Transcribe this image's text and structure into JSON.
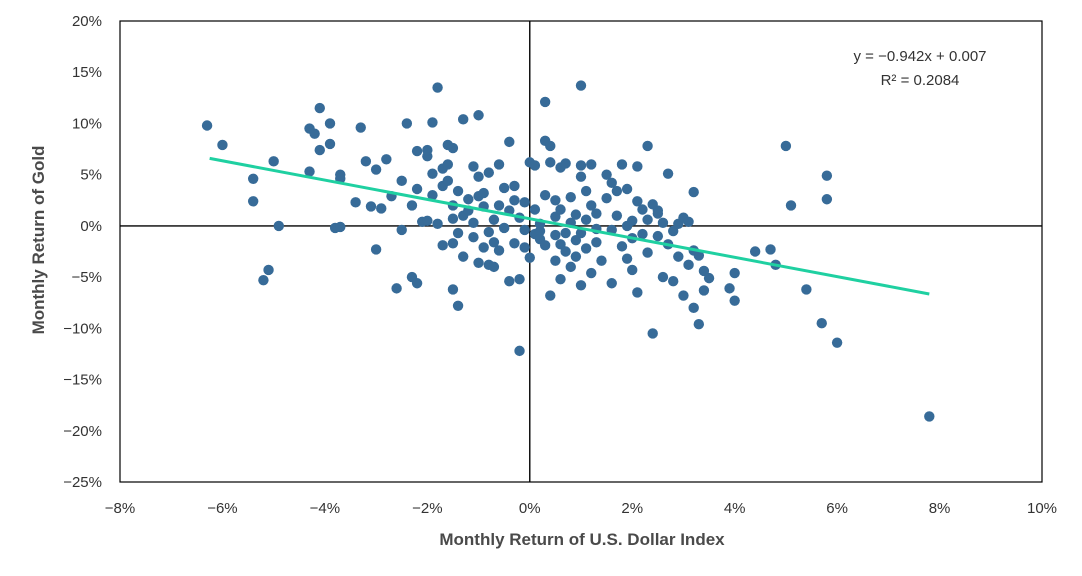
{
  "chart_data": {
    "type": "scatter",
    "title": "",
    "xlabel": "Monthly Return of U.S. Dollar Index",
    "ylabel": "Monthly Return of Gold",
    "xlim": [
      -8,
      10
    ],
    "ylim": [
      -25,
      20
    ],
    "x_ticks": [
      -8,
      -6,
      -4,
      -2,
      0,
      2,
      4,
      6,
      8,
      10
    ],
    "y_ticks": [
      -25,
      -20,
      -15,
      -10,
      -5,
      0,
      5,
      10,
      15,
      20
    ],
    "x_tick_labels": [
      "−8%",
      "−6%",
      "−4%",
      "−2%",
      "0%",
      "2%",
      "4%",
      "6%",
      "8%",
      "10%"
    ],
    "y_tick_labels": [
      "−25%",
      "−20%",
      "−15%",
      "−10%",
      "−5%",
      "0%",
      "5%",
      "10%",
      "15%",
      "20%"
    ],
    "grid": false,
    "colors": {
      "points": "#376b98",
      "trendline": "#1fd0a1",
      "axes": "#000000"
    },
    "trendline": {
      "slope": -0.942,
      "intercept": 0.7,
      "x_range": [
        -6.25,
        7.8
      ]
    },
    "annotation": {
      "equation": "y = −0.942x + 0.007",
      "r_squared": "R² = 0.2084"
    },
    "points": [
      [
        -6.3,
        9.8
      ],
      [
        -6.0,
        7.9
      ],
      [
        -5.4,
        4.6
      ],
      [
        -5.4,
        2.4
      ],
      [
        -5.2,
        -5.3
      ],
      [
        -5.1,
        -4.3
      ],
      [
        -5.0,
        6.3
      ],
      [
        -4.9,
        0.0
      ],
      [
        -4.3,
        5.3
      ],
      [
        -4.3,
        9.5
      ],
      [
        -4.2,
        9.0
      ],
      [
        -4.1,
        11.5
      ],
      [
        -4.1,
        7.4
      ],
      [
        -3.9,
        8.0
      ],
      [
        -3.9,
        10.0
      ],
      [
        -3.8,
        -0.2
      ],
      [
        -3.7,
        -0.1
      ],
      [
        -3.7,
        4.6
      ],
      [
        -3.7,
        5.0
      ],
      [
        -3.4,
        2.3
      ],
      [
        -3.3,
        9.6
      ],
      [
        -3.2,
        6.3
      ],
      [
        -3.1,
        1.9
      ],
      [
        -3.0,
        -2.3
      ],
      [
        -3.0,
        5.5
      ],
      [
        -2.9,
        1.7
      ],
      [
        -2.8,
        6.5
      ],
      [
        -2.7,
        2.9
      ],
      [
        -2.6,
        -6.1
      ],
      [
        -2.5,
        4.4
      ],
      [
        -2.5,
        -0.4
      ],
      [
        -2.4,
        10.0
      ],
      [
        -2.3,
        -5.0
      ],
      [
        -2.3,
        2.0
      ],
      [
        -2.2,
        -5.6
      ],
      [
        -2.2,
        3.6
      ],
      [
        -2.2,
        7.3
      ],
      [
        -2.1,
        0.4
      ],
      [
        -2.0,
        6.8
      ],
      [
        -2.0,
        0.5
      ],
      [
        -2.0,
        7.4
      ],
      [
        -1.9,
        10.1
      ],
      [
        -1.9,
        5.1
      ],
      [
        -1.9,
        3.0
      ],
      [
        -1.8,
        0.2
      ],
      [
        -1.8,
        13.5
      ],
      [
        -1.7,
        5.6
      ],
      [
        -1.7,
        -1.9
      ],
      [
        -1.7,
        3.9
      ],
      [
        -1.6,
        6.0
      ],
      [
        -1.6,
        4.4
      ],
      [
        -1.6,
        7.9
      ],
      [
        -1.5,
        0.7
      ],
      [
        -1.5,
        2.0
      ],
      [
        -1.5,
        -6.2
      ],
      [
        -1.5,
        -1.7
      ],
      [
        -1.5,
        7.6
      ],
      [
        -1.4,
        -0.7
      ],
      [
        -1.4,
        3.4
      ],
      [
        -1.4,
        -7.8
      ],
      [
        -1.3,
        10.4
      ],
      [
        -1.3,
        1.0
      ],
      [
        -1.3,
        -3.0
      ],
      [
        -1.2,
        2.6
      ],
      [
        -1.2,
        1.5
      ],
      [
        -1.1,
        0.3
      ],
      [
        -1.1,
        5.8
      ],
      [
        -1.1,
        -1.1
      ],
      [
        -1.0,
        10.8
      ],
      [
        -1.0,
        -3.6
      ],
      [
        -1.0,
        2.9
      ],
      [
        -1.0,
        4.8
      ],
      [
        -0.9,
        1.9
      ],
      [
        -0.9,
        -2.1
      ],
      [
        -0.9,
        3.2
      ],
      [
        -0.8,
        -3.8
      ],
      [
        -0.8,
        5.2
      ],
      [
        -0.8,
        -0.6
      ],
      [
        -0.7,
        -1.6
      ],
      [
        -0.7,
        0.6
      ],
      [
        -0.7,
        -4.0
      ],
      [
        -0.6,
        6.0
      ],
      [
        -0.6,
        2.0
      ],
      [
        -0.6,
        -2.4
      ],
      [
        -0.5,
        3.7
      ],
      [
        -0.5,
        -0.2
      ],
      [
        -0.4,
        8.2
      ],
      [
        -0.4,
        1.5
      ],
      [
        -0.4,
        -5.4
      ],
      [
        -0.3,
        2.5
      ],
      [
        -0.3,
        -1.7
      ],
      [
        -0.3,
        3.9
      ],
      [
        -0.2,
        0.8
      ],
      [
        -0.2,
        -12.2
      ],
      [
        -0.2,
        -5.2
      ],
      [
        -0.1,
        2.3
      ],
      [
        -0.1,
        -0.4
      ],
      [
        -0.1,
        -2.1
      ],
      [
        0.0,
        6.2
      ],
      [
        0.0,
        -3.1
      ],
      [
        0.1,
        1.6
      ],
      [
        0.1,
        5.9
      ],
      [
        0.1,
        -0.8
      ],
      [
        0.2,
        -0.5
      ],
      [
        0.2,
        0.2
      ],
      [
        0.2,
        -1.3
      ],
      [
        0.3,
        3.0
      ],
      [
        0.3,
        12.1
      ],
      [
        0.3,
        8.3
      ],
      [
        0.3,
        -1.9
      ],
      [
        0.4,
        7.8
      ],
      [
        0.4,
        -6.8
      ],
      [
        0.4,
        6.2
      ],
      [
        0.5,
        -3.4
      ],
      [
        0.5,
        0.9
      ],
      [
        0.5,
        -0.9
      ],
      [
        0.5,
        2.5
      ],
      [
        0.6,
        5.7
      ],
      [
        0.6,
        -5.2
      ],
      [
        0.6,
        -1.8
      ],
      [
        0.6,
        1.6
      ],
      [
        0.7,
        -0.7
      ],
      [
        0.7,
        6.1
      ],
      [
        0.7,
        -2.5
      ],
      [
        0.8,
        2.8
      ],
      [
        0.8,
        -4.0
      ],
      [
        0.8,
        0.3
      ],
      [
        0.9,
        -1.4
      ],
      [
        0.9,
        1.1
      ],
      [
        0.9,
        -3.0
      ],
      [
        1.0,
        13.7
      ],
      [
        1.0,
        4.8
      ],
      [
        1.0,
        5.9
      ],
      [
        1.0,
        -5.8
      ],
      [
        1.0,
        -0.7
      ],
      [
        1.1,
        3.4
      ],
      [
        1.1,
        -2.2
      ],
      [
        1.1,
        0.6
      ],
      [
        1.2,
        6.0
      ],
      [
        1.2,
        2.0
      ],
      [
        1.2,
        -4.6
      ],
      [
        1.3,
        -0.3
      ],
      [
        1.3,
        -1.6
      ],
      [
        1.3,
        1.2
      ],
      [
        1.4,
        -3.4
      ],
      [
        1.5,
        5.0
      ],
      [
        1.5,
        2.7
      ],
      [
        1.6,
        4.2
      ],
      [
        1.6,
        -0.4
      ],
      [
        1.6,
        -5.6
      ],
      [
        1.7,
        3.4
      ],
      [
        1.7,
        1.0
      ],
      [
        1.8,
        -2.0
      ],
      [
        1.8,
        6.0
      ],
      [
        1.9,
        0.0
      ],
      [
        1.9,
        3.6
      ],
      [
        1.9,
        -3.2
      ],
      [
        2.0,
        -4.3
      ],
      [
        2.0,
        0.5
      ],
      [
        2.0,
        -1.2
      ],
      [
        2.1,
        2.4
      ],
      [
        2.1,
        -6.5
      ],
      [
        2.1,
        5.8
      ],
      [
        2.2,
        1.6
      ],
      [
        2.2,
        -0.8
      ],
      [
        2.3,
        7.8
      ],
      [
        2.3,
        0.6
      ],
      [
        2.3,
        -2.6
      ],
      [
        2.4,
        2.1
      ],
      [
        2.4,
        -10.5
      ],
      [
        2.5,
        1.2
      ],
      [
        2.5,
        -1.0
      ],
      [
        2.5,
        1.5
      ],
      [
        2.6,
        -5.0
      ],
      [
        2.6,
        0.3
      ],
      [
        2.7,
        -1.8
      ],
      [
        2.7,
        5.1
      ],
      [
        2.8,
        -5.4
      ],
      [
        2.8,
        -0.5
      ],
      [
        2.9,
        0.2
      ],
      [
        2.9,
        -3.0
      ],
      [
        3.0,
        0.8
      ],
      [
        3.0,
        -6.8
      ],
      [
        3.1,
        0.4
      ],
      [
        3.1,
        -3.8
      ],
      [
        3.2,
        -8.0
      ],
      [
        3.2,
        -2.4
      ],
      [
        3.2,
        3.3
      ],
      [
        3.3,
        -2.9
      ],
      [
        3.3,
        -9.6
      ],
      [
        3.4,
        -4.4
      ],
      [
        3.4,
        -6.3
      ],
      [
        3.5,
        -5.1
      ],
      [
        3.9,
        -6.1
      ],
      [
        4.0,
        -4.6
      ],
      [
        4.0,
        -7.3
      ],
      [
        4.4,
        -2.5
      ],
      [
        4.7,
        -2.3
      ],
      [
        4.8,
        -3.8
      ],
      [
        5.0,
        7.8
      ],
      [
        5.1,
        2.0
      ],
      [
        5.4,
        -6.2
      ],
      [
        5.7,
        -9.5
      ],
      [
        5.8,
        4.9
      ],
      [
        5.8,
        2.6
      ],
      [
        6.0,
        -11.4
      ],
      [
        7.8,
        -18.6
      ]
    ]
  }
}
